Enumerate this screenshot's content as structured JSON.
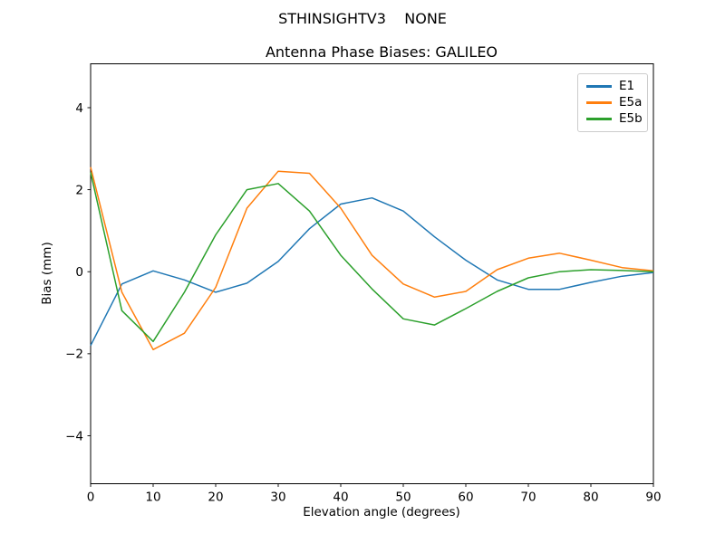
{
  "figure": {
    "suptitle": "STHINSIGHTV3    NONE"
  },
  "chart_data": {
    "type": "line",
    "title": "Antenna Phase Biases: GALILEO",
    "xlabel": "Elevation angle (degrees)",
    "ylabel": "Bias (mm)",
    "xlim": [
      0,
      90
    ],
    "ylim": [
      -5.17,
      5.07
    ],
    "xticks": [
      0,
      10,
      20,
      30,
      40,
      50,
      60,
      70,
      80,
      90
    ],
    "yticks": [
      -4,
      -2,
      0,
      2,
      4
    ],
    "grid": false,
    "legend_position": "upper right",
    "x": [
      0,
      5,
      10,
      15,
      20,
      25,
      30,
      35,
      40,
      45,
      50,
      55,
      60,
      65,
      70,
      75,
      80,
      85,
      90
    ],
    "series": [
      {
        "name": "E1",
        "color": "#1f77b4",
        "values": [
          -1.8,
          -0.3,
          0.02,
          -0.2,
          -0.5,
          -0.28,
          0.25,
          1.05,
          1.65,
          1.8,
          1.48,
          0.85,
          0.28,
          -0.2,
          -0.43,
          -0.43,
          -0.26,
          -0.11,
          -0.02
        ]
      },
      {
        "name": "E5a",
        "color": "#ff7f0e",
        "values": [
          2.55,
          -0.5,
          -1.9,
          -1.5,
          -0.38,
          1.55,
          2.45,
          2.4,
          1.55,
          0.4,
          -0.3,
          -0.62,
          -0.48,
          0.05,
          0.33,
          0.45,
          0.28,
          0.1,
          0.02
        ]
      },
      {
        "name": "E5b",
        "color": "#2ca02c",
        "values": [
          2.42,
          -0.95,
          -1.7,
          -0.5,
          0.9,
          2.0,
          2.15,
          1.48,
          0.4,
          -0.42,
          -1.15,
          -1.3,
          -0.9,
          -0.48,
          -0.15,
          0.0,
          0.05,
          0.03,
          0.0
        ]
      }
    ]
  }
}
